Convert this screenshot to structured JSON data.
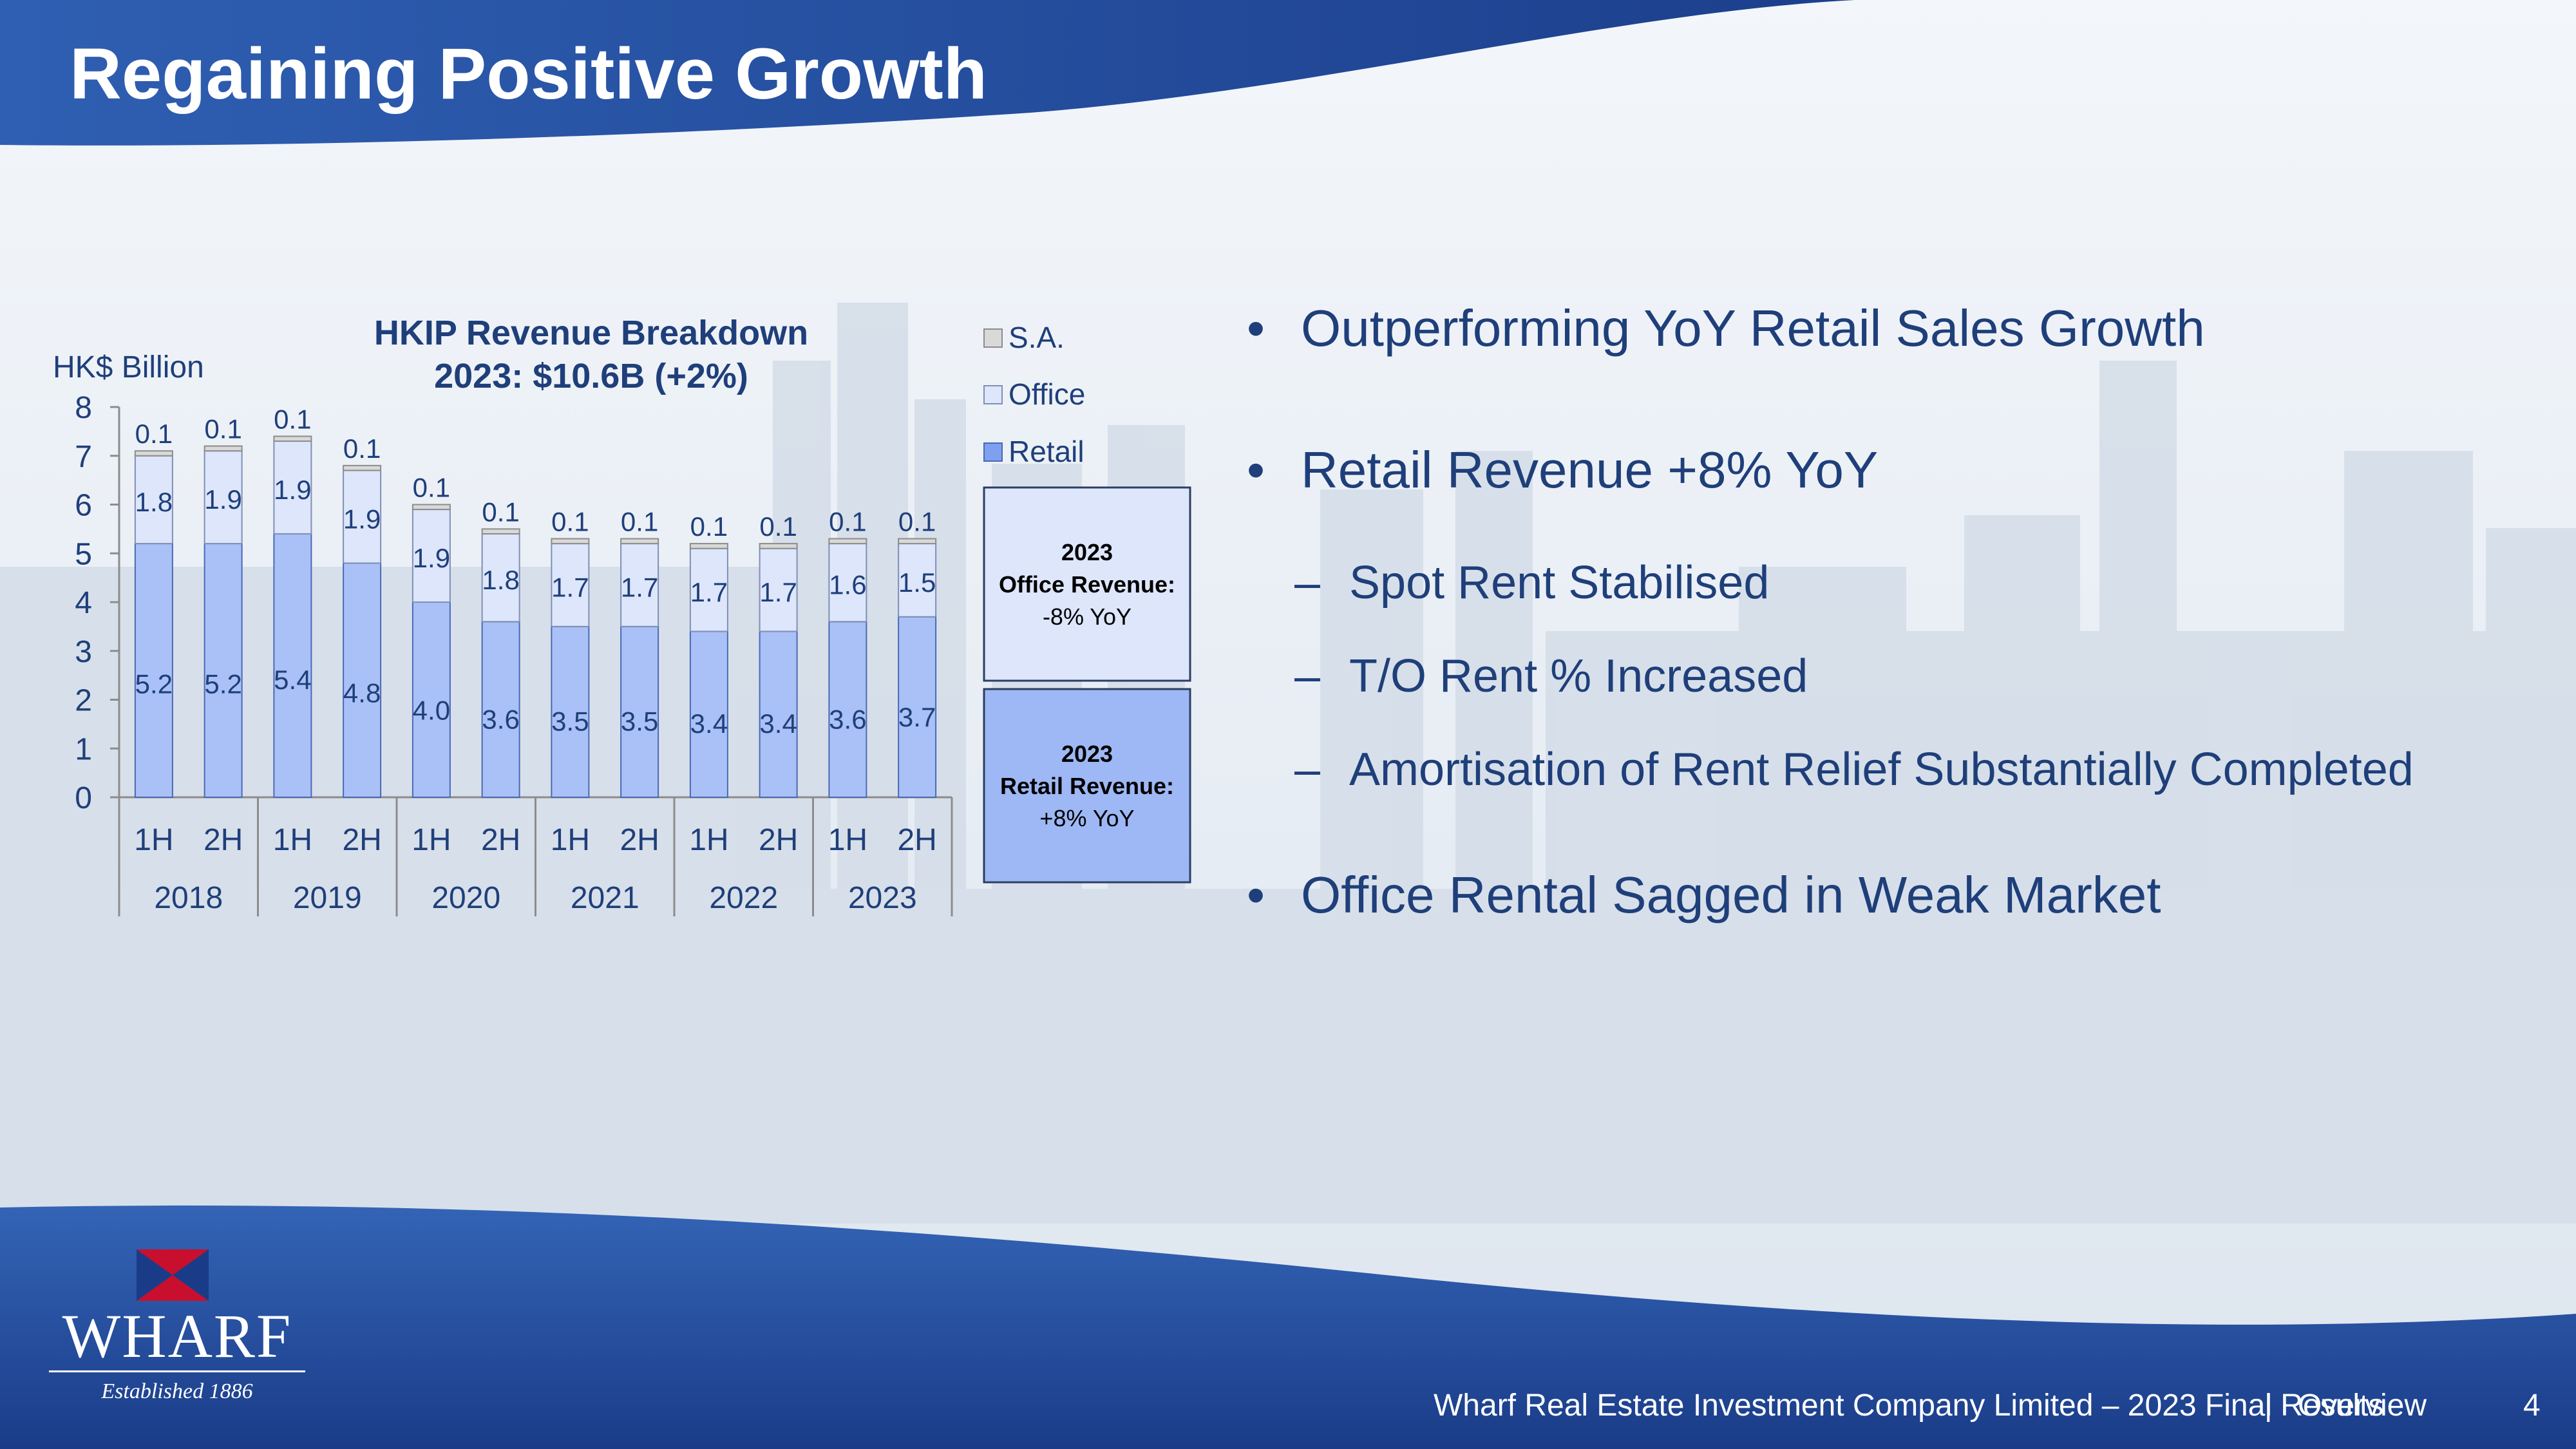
{
  "slide": {
    "title": "Regaining Positive Growth",
    "page_number": "4",
    "footer_text": "Wharf Real Estate Investment Company Limited – 2023 Final Results",
    "footer_separator": "|",
    "footer_section": "Overview"
  },
  "colors": {
    "header_blue": "#2a56a8",
    "header_dark": "#14357a",
    "retail": "#a9c1f6",
    "office": "#dde6fb",
    "sa": "#d9d9d9",
    "text_navy": "#1f3f7a",
    "logo_red": "#c8102e"
  },
  "bullets": [
    {
      "level": 1,
      "marker": "•",
      "text": "Outperforming YoY Retail Sales Growth"
    },
    {
      "level": 1,
      "marker": "•",
      "text": "Retail Revenue +8% YoY"
    },
    {
      "level": 2,
      "marker": "–",
      "text": "Spot Rent Stabilised"
    },
    {
      "level": 2,
      "marker": "–",
      "text": "T/O Rent % Increased"
    },
    {
      "level": 2,
      "marker": "–",
      "text": "Amortisation of Rent Relief Substantially Completed"
    },
    {
      "level": 1,
      "marker": "•",
      "text": "Office Rental Sagged in Weak Market"
    }
  ],
  "callouts": {
    "office": {
      "year": "2023",
      "label": "Office Revenue:",
      "value": "-8% YoY"
    },
    "retail": {
      "year": "2023",
      "label": "Retail Revenue:",
      "value": "+8% YoY"
    }
  },
  "logo": {
    "word": "WHARF",
    "tagline": "Established 1886",
    "icon": "wharf-flag-logo-icon"
  },
  "chart_data": {
    "type": "bar",
    "stacked": true,
    "title": "HKIP Revenue Breakdown",
    "subtitle": "2023: $10.6B (+2%)",
    "ylabel": "HK$ Billion",
    "ylim": [
      0,
      8
    ],
    "yticks": [
      0,
      1,
      2,
      3,
      4,
      5,
      6,
      7,
      8
    ],
    "categories": [
      "1H",
      "2H",
      "1H",
      "2H",
      "1H",
      "2H",
      "1H",
      "2H",
      "1H",
      "2H",
      "1H",
      "2H"
    ],
    "groups": [
      {
        "label": "2018",
        "span": 2
      },
      {
        "label": "2019",
        "span": 2
      },
      {
        "label": "2020",
        "span": 2
      },
      {
        "label": "2021",
        "span": 2
      },
      {
        "label": "2022",
        "span": 2
      },
      {
        "label": "2023",
        "span": 2
      }
    ],
    "series": [
      {
        "name": "Retail",
        "color": "#a9c1f6",
        "values": [
          5.2,
          5.2,
          5.4,
          4.8,
          4.0,
          3.6,
          3.5,
          3.5,
          3.4,
          3.4,
          3.6,
          3.7
        ],
        "labels": [
          "5.2",
          "5.2",
          "5.4",
          "4.8",
          "4.0",
          "3.6",
          "3.5",
          "3.5",
          "3.4",
          "3.4",
          "3.6",
          "3.7"
        ]
      },
      {
        "name": "Office",
        "color": "#dde6fb",
        "values": [
          1.8,
          1.9,
          1.9,
          1.9,
          1.9,
          1.8,
          1.7,
          1.7,
          1.7,
          1.7,
          1.6,
          1.5
        ],
        "labels": [
          "1.8",
          "1.9",
          "1.9",
          "1.9",
          "1.9",
          "1.8",
          "1.7",
          "1.7",
          "1.7",
          "1.7",
          "1.6",
          "1.5"
        ]
      },
      {
        "name": "S.A.",
        "color": "#d9d9d9",
        "values": [
          0.1,
          0.1,
          0.1,
          0.1,
          0.1,
          0.1,
          0.1,
          0.1,
          0.1,
          0.1,
          0.1,
          0.1
        ],
        "labels": [
          "0.1",
          "0.1",
          "0.1",
          "0.1",
          "0.1",
          "0.1",
          "0.1",
          "0.1",
          "0.1",
          "0.1",
          "0.1",
          "0.1"
        ]
      }
    ],
    "legend": [
      "S.A.",
      "Office",
      "Retail"
    ],
    "legend_position": "right",
    "grid": false
  }
}
